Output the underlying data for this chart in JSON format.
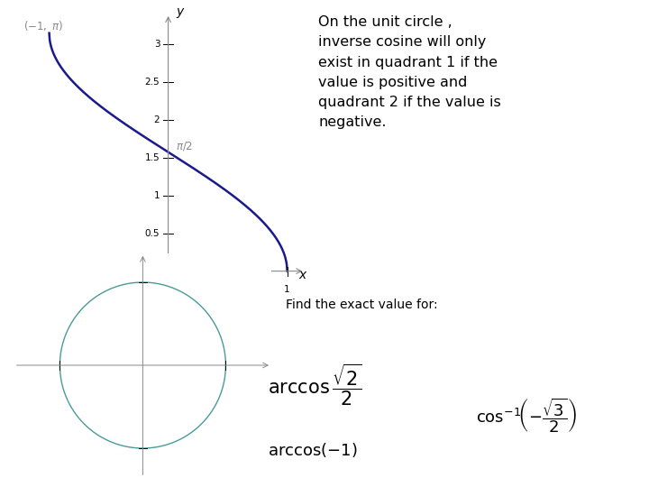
{
  "background_color": "#ffffff",
  "graph_color": "#1a1a8c",
  "circle_color": "#4a9a9a",
  "axis_color": "#888888",
  "label_color": "#888888",
  "text_color": "#000000",
  "title_text": "On the unit circle ,\ninverse cosine will only\nexist in quadrant 1 if the\nvalue is positive and\nquadrant 2 if the value is\nnegative.",
  "find_text": "Find the exact value for:",
  "x_label": "x",
  "y_label": "y"
}
